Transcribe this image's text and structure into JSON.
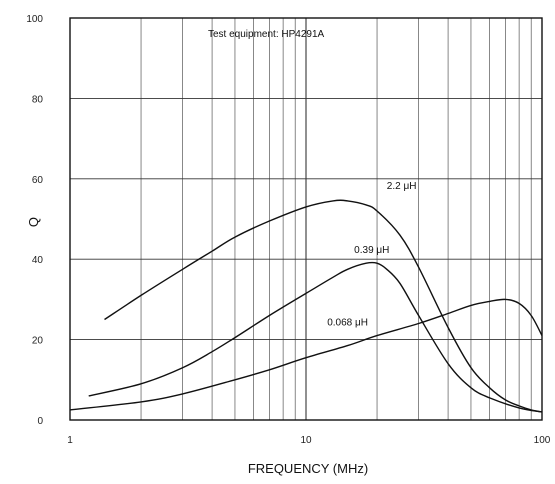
{
  "chart_data": {
    "type": "line",
    "title": "",
    "annotation": "Test equipment: HP4291A",
    "xlabel": "FREQUENCY (MHz)",
    "ylabel": "Q",
    "xscale": "log",
    "xlim": [
      1,
      100
    ],
    "ylim": [
      0,
      100
    ],
    "x_ticks": [
      {
        "value": 1,
        "label": "1"
      },
      {
        "value": 10,
        "label": "10"
      },
      {
        "value": 100,
        "label": "100"
      }
    ],
    "y_ticks": [
      0,
      20,
      40,
      60,
      80,
      100
    ],
    "grid": true,
    "series": [
      {
        "name": "2.2 μH",
        "x": [
          1.4,
          2,
          3,
          4,
          5,
          7,
          10,
          13,
          15,
          18,
          20,
          25,
          30,
          40,
          50,
          60,
          70,
          80,
          90,
          100
        ],
        "y": [
          25,
          31,
          37.5,
          42,
          45.5,
          49.5,
          53,
          54.5,
          54.5,
          53.5,
          52,
          46,
          38,
          23,
          13,
          8,
          5,
          3.5,
          2.5,
          2
        ]
      },
      {
        "name": "0.39 μH",
        "x": [
          1.2,
          2,
          3,
          4,
          5,
          7,
          10,
          13,
          15,
          18,
          20,
          22,
          25,
          30,
          40,
          50,
          60,
          80,
          100
        ],
        "y": [
          6,
          9,
          13,
          17,
          20.5,
          26,
          31.5,
          35.5,
          37.5,
          39,
          39,
          37.5,
          34,
          26,
          14,
          8,
          5.5,
          3,
          2
        ]
      },
      {
        "name": "0.068 μH",
        "x": [
          1,
          2,
          3,
          5,
          7,
          10,
          15,
          20,
          30,
          40,
          50,
          60,
          70,
          80,
          90,
          100
        ],
        "y": [
          2.5,
          4.5,
          6.5,
          10,
          12.5,
          15.5,
          18.5,
          21,
          24,
          26.5,
          28.5,
          29.5,
          30,
          29,
          26,
          21
        ]
      }
    ]
  }
}
